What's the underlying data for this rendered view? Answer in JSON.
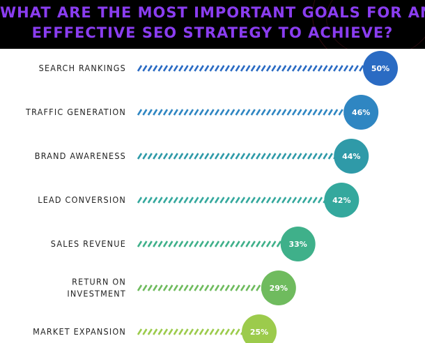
{
  "header": {
    "title_line1": "What are the most important goals for an",
    "title_line2": "efffective SEO strategy to achieve?"
  },
  "chart_data": {
    "type": "bar",
    "categories": [
      "SEARCH RANKINGS",
      "TRAFFIC GENERATION",
      "BRAND AWARENESS",
      "LEAD CONVERSION",
      "SALES REVENUE",
      "RETURN ON INVESTMENT",
      "MARKET EXPANSION"
    ],
    "values": [
      50,
      46,
      44,
      42,
      33,
      29,
      25
    ],
    "value_labels": [
      "50%",
      "46%",
      "44%",
      "42%",
      "33%",
      "29%",
      "25%"
    ],
    "colors": [
      "#2a6bc3",
      "#2f86c2",
      "#2f9aa8",
      "#34a89d",
      "#3fb08a",
      "#6fbb5e",
      "#9ccb4c"
    ]
  }
}
